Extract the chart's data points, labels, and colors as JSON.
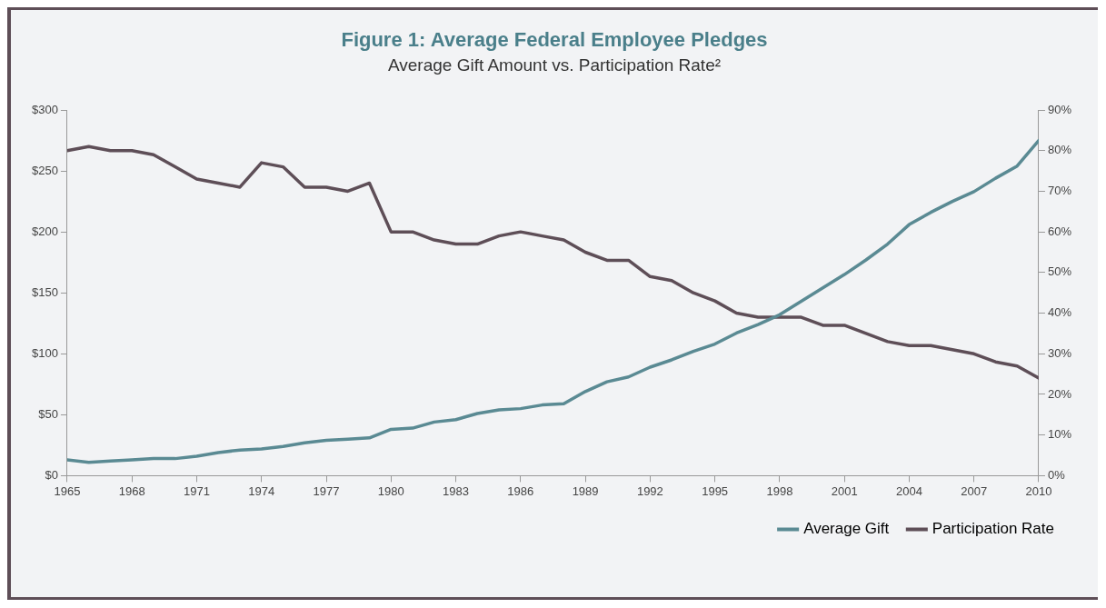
{
  "chart_data": {
    "type": "line",
    "title": "Figure 1: Average Federal Employee Pledges",
    "subtitle": "Average Gift Amount vs. Participation Rate²",
    "x": [
      1965,
      1966,
      1967,
      1968,
      1969,
      1970,
      1971,
      1972,
      1973,
      1974,
      1975,
      1976,
      1977,
      1978,
      1979,
      1980,
      1981,
      1982,
      1983,
      1984,
      1985,
      1986,
      1987,
      1988,
      1989,
      1990,
      1991,
      1992,
      1993,
      1994,
      1995,
      1996,
      1997,
      1998,
      1999,
      2000,
      2001,
      2002,
      2003,
      2004,
      2005,
      2006,
      2007,
      2008,
      2009,
      2010
    ],
    "series": [
      {
        "name": "Average Gift",
        "color": "#5a8a93",
        "values": [
          13,
          11,
          12,
          13,
          14,
          14,
          16,
          19,
          21,
          22,
          24,
          27,
          29,
          30,
          31,
          38,
          39,
          44,
          46,
          51,
          54,
          55,
          58,
          59,
          69,
          77,
          81,
          89,
          95,
          102,
          108,
          117,
          124,
          132,
          143,
          154,
          165,
          177,
          190,
          206,
          216,
          225,
          233,
          244,
          254,
          275
        ]
      },
      {
        "name": "Participation Rate",
        "color": "#5e4e57",
        "axis": "y2",
        "values": [
          80,
          81,
          80,
          80,
          79,
          76,
          73,
          72,
          71,
          77,
          76,
          71,
          71,
          70,
          72,
          60,
          60,
          58,
          57,
          57,
          59,
          60,
          59,
          58,
          55,
          53,
          53,
          49,
          48,
          45,
          43,
          40,
          39,
          39,
          39,
          37,
          37,
          35,
          33,
          32,
          32,
          31,
          30,
          28,
          27,
          24
        ]
      }
    ],
    "xlim": [
      1965,
      2010
    ],
    "xticks": [
      1965,
      1968,
      1971,
      1974,
      1977,
      1980,
      1983,
      1986,
      1989,
      1992,
      1995,
      1998,
      2001,
      2004,
      2007,
      2010
    ],
    "ylim": [
      0,
      300
    ],
    "yticks": [
      {
        "value": 0,
        "label": "$0"
      },
      {
        "value": 50,
        "label": "$50"
      },
      {
        "value": 100,
        "label": "$100"
      },
      {
        "value": 150,
        "label": "$150"
      },
      {
        "value": 200,
        "label": "$200"
      },
      {
        "value": 250,
        "label": "$250"
      },
      {
        "value": 300,
        "label": "$300"
      }
    ],
    "y2lim": [
      0,
      90
    ],
    "y2ticks": [
      {
        "value": 0,
        "label": "0%"
      },
      {
        "value": 10,
        "label": "10%"
      },
      {
        "value": 20,
        "label": "20%"
      },
      {
        "value": 30,
        "label": "30%"
      },
      {
        "value": 40,
        "label": "40%"
      },
      {
        "value": 50,
        "label": "50%"
      },
      {
        "value": 60,
        "label": "60%"
      },
      {
        "value": 70,
        "label": "70%"
      },
      {
        "value": 80,
        "label": "80%"
      },
      {
        "value": 90,
        "label": "90%"
      }
    ],
    "grid": false,
    "legend": "bottom right",
    "marker": "none",
    "line_style": "solid"
  }
}
